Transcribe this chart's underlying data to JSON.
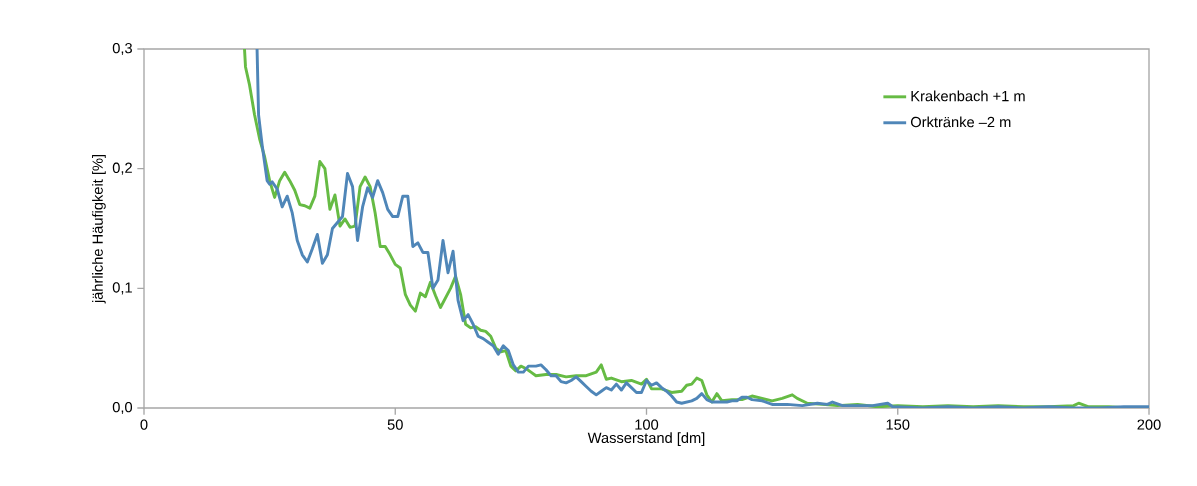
{
  "chart_data": {
    "type": "line",
    "xlabel": "Wasserstand [dm]",
    "ylabel": "jährliche Häufigkeit [%]",
    "xlim": [
      0,
      200
    ],
    "ylim": [
      0,
      0.3
    ],
    "xticks": [
      0,
      50,
      100,
      150,
      200
    ],
    "yticks": [
      {
        "value": 0,
        "label": "0,0"
      },
      {
        "value": 0.1,
        "label": "0,1"
      },
      {
        "value": 0.2,
        "label": "0,2"
      },
      {
        "value": 0.3,
        "label": "0,3"
      }
    ],
    "grid": false,
    "legend": "top right",
    "marker": "none",
    "line_style": "solid",
    "series": [
      {
        "name": "Krakenbach +1 m",
        "color": "#66bb44",
        "x": [
          20,
          20.2,
          21,
          22,
          23,
          24,
          25,
          26,
          27,
          28,
          29,
          30,
          31,
          32,
          33,
          34,
          35,
          36,
          37,
          38,
          39,
          40,
          41,
          42,
          43,
          44,
          45,
          46,
          47,
          48,
          49,
          50,
          51,
          52,
          53,
          54,
          55,
          56,
          57,
          58,
          59,
          60,
          61,
          62,
          63,
          64,
          65,
          66,
          67,
          68,
          69,
          70,
          71,
          72,
          73,
          74,
          75,
          76,
          77,
          78,
          80,
          82,
          84,
          86,
          88,
          90,
          91,
          92,
          93,
          95,
          97,
          99,
          100,
          101,
          103,
          105,
          107,
          108,
          109,
          110,
          111,
          112,
          113,
          114,
          115,
          117,
          119,
          121,
          123,
          125,
          127,
          129,
          130,
          132,
          135,
          138,
          142,
          146,
          150,
          155,
          160,
          165,
          170,
          175,
          180,
          185,
          186,
          188,
          192,
          196,
          200
        ],
        "values": [
          0.3,
          0.285,
          0.27,
          0.245,
          0.225,
          0.21,
          0.19,
          0.176,
          0.19,
          0.197,
          0.19,
          0.182,
          0.17,
          0.169,
          0.167,
          0.177,
          0.206,
          0.2,
          0.166,
          0.178,
          0.152,
          0.158,
          0.151,
          0.152,
          0.185,
          0.193,
          0.185,
          0.163,
          0.135,
          0.135,
          0.128,
          0.12,
          0.117,
          0.095,
          0.086,
          0.081,
          0.096,
          0.093,
          0.105,
          0.094,
          0.084,
          0.092,
          0.1,
          0.11,
          0.095,
          0.07,
          0.067,
          0.068,
          0.065,
          0.064,
          0.06,
          0.05,
          0.047,
          0.048,
          0.035,
          0.031,
          0.035,
          0.033,
          0.03,
          0.027,
          0.028,
          0.028,
          0.026,
          0.027,
          0.027,
          0.03,
          0.036,
          0.024,
          0.025,
          0.022,
          0.023,
          0.02,
          0.024,
          0.016,
          0.016,
          0.013,
          0.014,
          0.019,
          0.02,
          0.025,
          0.023,
          0.011,
          0.005,
          0.012,
          0.006,
          0.007,
          0.007,
          0.01,
          0.008,
          0.006,
          0.008,
          0.011,
          0.008,
          0.004,
          0.003,
          0.002,
          0.003,
          0.001,
          0.002,
          0.001,
          0.002,
          0.001,
          0.002,
          0.001,
          0.001,
          0.002,
          0.004,
          0.001,
          0.001,
          0.0,
          0.0
        ]
      },
      {
        "name": "Orktränke –2 m",
        "color": "#4f86b8",
        "x": [
          22.5,
          22.8,
          23.5,
          24.5,
          25,
          25.5,
          26.5,
          27.5,
          28.5,
          29.5,
          30.5,
          31.5,
          32.5,
          33.5,
          34.5,
          35.5,
          36.5,
          37.5,
          38.5,
          39.5,
          40.5,
          41.5,
          42.5,
          43.5,
          44.5,
          45.5,
          46.5,
          47.5,
          48.5,
          49.5,
          50.5,
          51.5,
          52.5,
          53.5,
          54.5,
          55.5,
          56.5,
          57.5,
          58.5,
          59.5,
          60.5,
          61.5,
          62.5,
          63.5,
          64.5,
          65.5,
          66.5,
          67.5,
          68.5,
          69.5,
          70.5,
          71.5,
          72.5,
          73.5,
          74.5,
          75.5,
          76.5,
          78,
          79,
          80,
          81,
          82,
          83,
          84,
          85,
          86,
          87,
          88,
          89,
          90,
          91,
          92,
          93,
          94,
          95,
          96,
          97,
          98,
          99,
          100,
          101,
          102,
          103,
          104,
          105,
          106,
          107,
          108,
          109,
          110,
          111,
          112,
          113,
          114,
          116,
          117,
          118,
          119,
          120,
          121,
          123,
          125,
          128,
          131,
          134,
          136,
          137,
          139,
          142,
          145,
          148,
          149,
          155,
          160,
          165,
          170,
          175,
          180,
          185,
          190,
          195,
          200
        ],
        "values": [
          0.3,
          0.245,
          0.22,
          0.19,
          0.187,
          0.189,
          0.183,
          0.168,
          0.177,
          0.163,
          0.14,
          0.128,
          0.122,
          0.133,
          0.145,
          0.121,
          0.128,
          0.15,
          0.155,
          0.16,
          0.196,
          0.185,
          0.14,
          0.168,
          0.184,
          0.176,
          0.19,
          0.18,
          0.166,
          0.16,
          0.16,
          0.177,
          0.177,
          0.135,
          0.138,
          0.13,
          0.13,
          0.1,
          0.107,
          0.14,
          0.113,
          0.131,
          0.09,
          0.073,
          0.078,
          0.07,
          0.06,
          0.058,
          0.055,
          0.052,
          0.045,
          0.052,
          0.048,
          0.036,
          0.03,
          0.03,
          0.035,
          0.035,
          0.036,
          0.032,
          0.027,
          0.027,
          0.022,
          0.021,
          0.023,
          0.026,
          0.022,
          0.018,
          0.014,
          0.011,
          0.014,
          0.017,
          0.015,
          0.02,
          0.015,
          0.021,
          0.017,
          0.013,
          0.013,
          0.023,
          0.019,
          0.021,
          0.017,
          0.014,
          0.01,
          0.005,
          0.004,
          0.005,
          0.006,
          0.008,
          0.012,
          0.007,
          0.005,
          0.005,
          0.005,
          0.006,
          0.006,
          0.009,
          0.009,
          0.007,
          0.006,
          0.003,
          0.003,
          0.002,
          0.004,
          0.003,
          0.005,
          0.002,
          0.002,
          0.002,
          0.004,
          0.001,
          0.0,
          0.001,
          0.0,
          0.001,
          0.0,
          0.001,
          0.0,
          0.0,
          0.001,
          0.001
        ]
      }
    ]
  }
}
